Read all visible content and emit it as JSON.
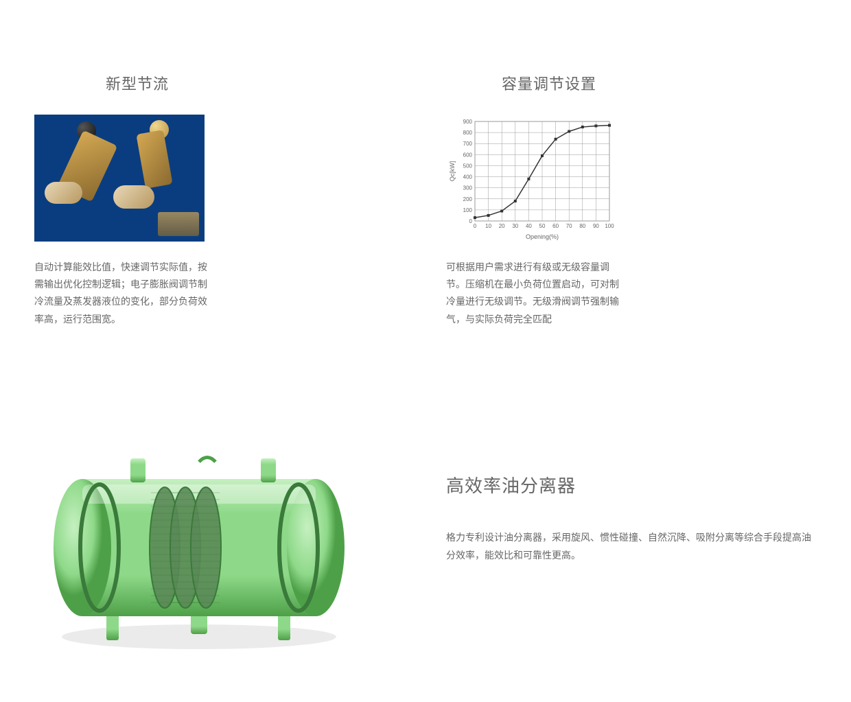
{
  "feature1": {
    "title": "新型节流",
    "desc": "自动计算能效比值，快速调节实际值，按需输出优化控制逻辑；电子膨胀阀调节制冷流量及蒸发器液位的变化，部分负荷效率高，运行范围宽。",
    "image_bg": "#0a3d7f"
  },
  "feature2": {
    "title": "容量调节设置",
    "desc": "可根据用户需求进行有级或无级容量调节。压缩机在最小负荷位置启动，可对制冷量进行无级调节。无级滑阀调节强制输气，与实际负荷完全匹配",
    "chart": {
      "type": "line",
      "xlabel": "Opening(%)",
      "ylabel": "Qc[kW]",
      "xlim": [
        0,
        100
      ],
      "ylim": [
        0,
        900
      ],
      "xtick_step": 10,
      "ytick_step": 100,
      "xticks": [
        0,
        10,
        20,
        30,
        40,
        50,
        60,
        70,
        80,
        90,
        100
      ],
      "yticks": [
        0,
        100,
        200,
        300,
        400,
        500,
        600,
        700,
        800,
        900
      ],
      "x_values": [
        0,
        10,
        20,
        30,
        40,
        50,
        60,
        70,
        80,
        90,
        100
      ],
      "y_values": [
        30,
        50,
        90,
        180,
        380,
        590,
        740,
        810,
        850,
        860,
        865
      ],
      "line_color": "#333333",
      "line_width": 1.5,
      "marker": "square",
      "marker_size": 4,
      "marker_color": "#333333",
      "grid_color": "#999999",
      "background_color": "#ffffff",
      "label_fontsize": 9,
      "tick_fontsize": 8,
      "text_color": "#666666"
    }
  },
  "feature3": {
    "title": "高效率油分离器",
    "desc": "格力专利设计油分离器，采用旋风、惯性碰撞、自然沉降、吸附分离等综合手段提高油分效率，能效比和可靠性更高。",
    "tank": {
      "body_color": "#8ed989",
      "body_highlight": "#c5f0c0",
      "body_shadow": "#4ea048",
      "mesh_color": "#5a8a56",
      "ring_color": "#3a7a3a"
    }
  },
  "colors": {
    "title_color": "#666666",
    "desc_color": "#666666",
    "background": "#ffffff"
  }
}
